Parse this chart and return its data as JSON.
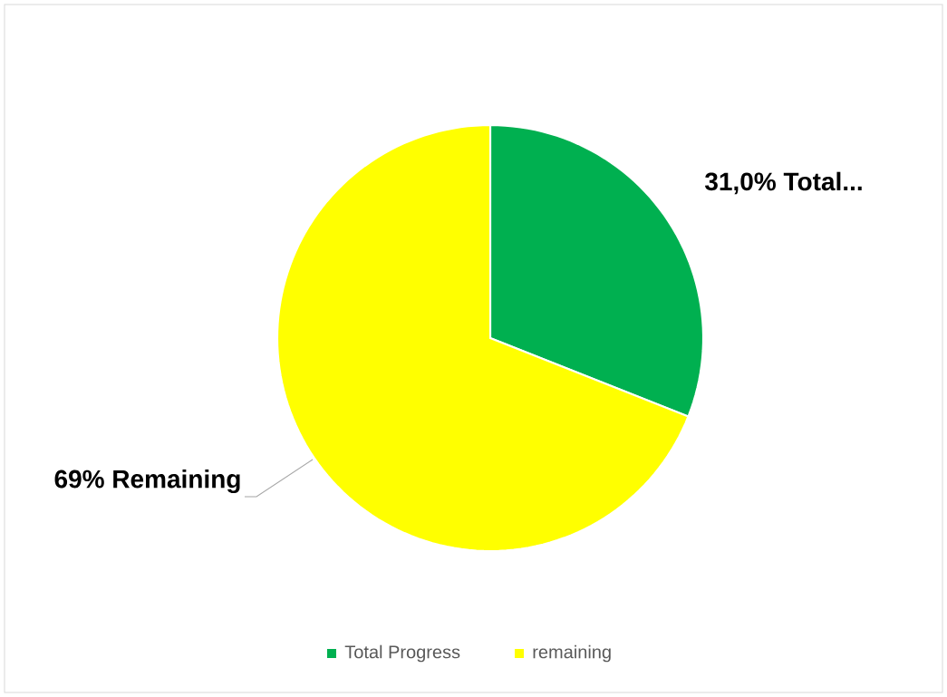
{
  "chart_data": {
    "type": "pie",
    "categories": [
      "Total Progress",
      "remaining"
    ],
    "values": [
      31,
      69
    ],
    "colors": [
      "#00b050",
      "#ffff00"
    ],
    "value_labels": [
      "31,0% Total...",
      "69% Remaining"
    ],
    "legend": "bottom"
  }
}
